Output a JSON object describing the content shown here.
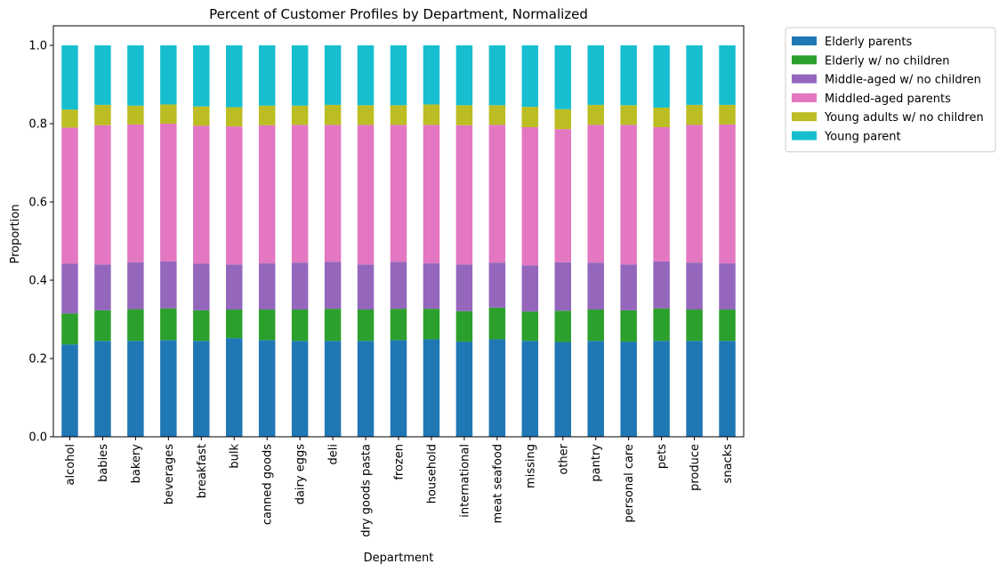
{
  "chart_data": {
    "type": "bar",
    "stacked": true,
    "title": "Percent of Customer Profiles by Department, Normalized",
    "xlabel": "Department",
    "ylabel": "Proportion",
    "ylim": [
      0,
      1.05
    ],
    "yticks": [
      "0.0",
      "0.2",
      "0.4",
      "0.6",
      "0.8",
      "1.0"
    ],
    "ytick_values": [
      0,
      0.2,
      0.4,
      0.6,
      0.8,
      1.0
    ],
    "grid": false,
    "legend_position": "outside-top-right",
    "categories": [
      "alcohol",
      "babies",
      "bakery",
      "beverages",
      "breakfast",
      "bulk",
      "canned goods",
      "dairy eggs",
      "deli",
      "dry goods pasta",
      "frozen",
      "household",
      "international",
      "meat seafood",
      "missing",
      "other",
      "pantry",
      "personal care",
      "pets",
      "produce",
      "snacks"
    ],
    "series": [
      {
        "name": "Elderly parents",
        "color": "#1f77b4",
        "values": [
          0.236,
          0.245,
          0.245,
          0.247,
          0.245,
          0.252,
          0.247,
          0.245,
          0.245,
          0.245,
          0.247,
          0.249,
          0.243,
          0.249,
          0.245,
          0.242,
          0.245,
          0.243,
          0.245,
          0.245,
          0.245
        ]
      },
      {
        "name": "Elderly w/ no children",
        "color": "#2ca02c",
        "values": [
          0.079,
          0.078,
          0.081,
          0.081,
          0.078,
          0.073,
          0.078,
          0.08,
          0.082,
          0.08,
          0.08,
          0.078,
          0.078,
          0.081,
          0.075,
          0.08,
          0.08,
          0.08,
          0.083,
          0.08,
          0.08
        ]
      },
      {
        "name": "Middle-aged w/ no children",
        "color": "#9467bd",
        "values": [
          0.127,
          0.117,
          0.12,
          0.12,
          0.119,
          0.115,
          0.118,
          0.12,
          0.12,
          0.115,
          0.12,
          0.116,
          0.119,
          0.115,
          0.118,
          0.124,
          0.12,
          0.117,
          0.12,
          0.12,
          0.118
        ]
      },
      {
        "name": "Middled-aged parents",
        "color": "#e377c2",
        "values": [
          0.348,
          0.356,
          0.352,
          0.352,
          0.353,
          0.353,
          0.353,
          0.352,
          0.35,
          0.357,
          0.35,
          0.354,
          0.356,
          0.352,
          0.353,
          0.34,
          0.352,
          0.357,
          0.343,
          0.352,
          0.355
        ]
      },
      {
        "name": "Young adults w/ no children",
        "color": "#bcbd22",
        "values": [
          0.046,
          0.052,
          0.048,
          0.049,
          0.049,
          0.049,
          0.05,
          0.049,
          0.051,
          0.05,
          0.05,
          0.052,
          0.051,
          0.05,
          0.052,
          0.051,
          0.051,
          0.05,
          0.05,
          0.051,
          0.05
        ]
      },
      {
        "name": "Young parent",
        "color": "#17becf",
        "values": [
          0.164,
          0.152,
          0.154,
          0.151,
          0.156,
          0.158,
          0.154,
          0.154,
          0.152,
          0.153,
          0.153,
          0.151,
          0.153,
          0.153,
          0.157,
          0.163,
          0.152,
          0.153,
          0.159,
          0.152,
          0.152
        ]
      }
    ]
  }
}
